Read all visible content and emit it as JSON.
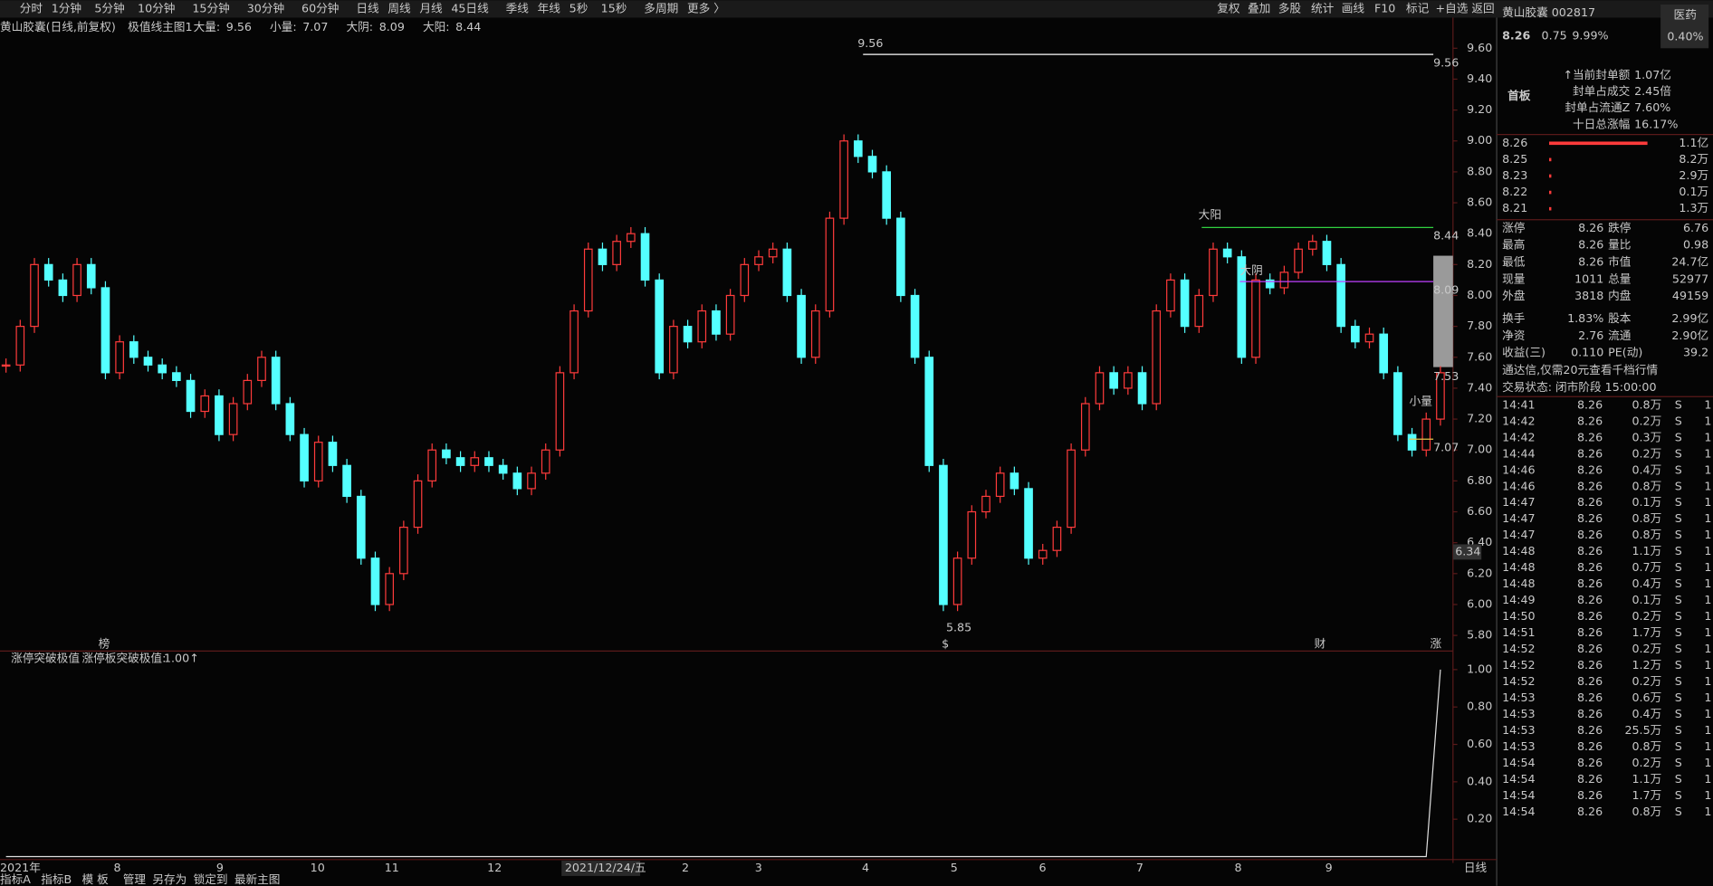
{
  "toolbar": {
    "left": [
      "分时",
      "1分钟",
      "5分钟",
      "10分钟",
      "15分钟",
      "30分钟",
      "60分钟",
      "日线",
      "周线",
      "月线",
      "45日线",
      "季线",
      "年线",
      "5秒",
      "15秒",
      "多周期",
      "更多 〉"
    ],
    "right": [
      "复权",
      "叠加",
      "多股",
      "统计",
      "画线",
      "F10",
      "标记",
      "+自选",
      "返回"
    ]
  },
  "header": {
    "title": "黄山胶囊(日线,前复权)",
    "indicator": "极值线主图1",
    "items": [
      {
        "label": "大量:",
        "value": "9.56",
        "color": "#ffffff"
      },
      {
        "label": "小量:",
        "value": "7.07",
        "color": "#e6c34a"
      },
      {
        "label": "大阴:",
        "value": "8.09",
        "color": "#c040ff"
      },
      {
        "label": "大阳:",
        "value": "8.44",
        "color": "#30d040"
      }
    ]
  },
  "chart": {
    "closes": [
      7.55,
      7.8,
      8.2,
      8.1,
      8.0,
      8.2,
      8.05,
      7.5,
      7.7,
      7.6,
      7.55,
      7.5,
      7.45,
      7.25,
      7.35,
      7.1,
      7.3,
      7.45,
      7.6,
      7.3,
      7.1,
      6.8,
      7.05,
      6.9,
      6.7,
      6.3,
      6.0,
      6.2,
      6.5,
      6.8,
      7.0,
      6.95,
      6.9,
      6.95,
      6.9,
      6.85,
      6.75,
      6.85,
      7.0,
      7.5,
      7.9,
      8.3,
      8.2,
      8.35,
      8.4,
      8.1,
      7.5,
      7.8,
      7.7,
      7.9,
      7.75,
      8.0,
      8.2,
      8.25,
      8.3,
      8.0,
      7.6,
      7.9,
      8.5,
      9.0,
      8.9,
      8.8,
      8.5,
      8.0,
      7.6,
      6.9,
      6.0,
      6.3,
      6.6,
      6.7,
      6.85,
      6.75,
      6.3,
      6.35,
      6.5,
      7.0,
      7.3,
      7.5,
      7.4,
      7.5,
      7.3,
      7.9,
      8.1,
      7.8,
      8.0,
      8.3,
      8.25,
      7.6,
      8.1,
      8.05,
      8.15,
      8.3,
      8.35,
      8.2,
      7.8,
      7.7,
      7.75,
      7.5,
      7.1,
      7.0,
      7.2,
      7.5
    ],
    "yticks": [
      {
        "value": 9.6,
        "label": "9.60"
      },
      {
        "value": 9.4,
        "label": "9.40"
      },
      {
        "value": 9.2,
        "label": "9.20"
      },
      {
        "value": 9.0,
        "label": "9.00"
      },
      {
        "value": 8.8,
        "label": "8.80"
      },
      {
        "value": 8.6,
        "label": "8.60"
      },
      {
        "value": 8.4,
        "label": "8.40"
      },
      {
        "value": 8.2,
        "label": "8.20"
      },
      {
        "value": 8.0,
        "label": "8.00"
      },
      {
        "value": 7.8,
        "label": "7.80"
      },
      {
        "value": 7.6,
        "label": "7.60"
      },
      {
        "value": 7.4,
        "label": "7.40"
      },
      {
        "value": 7.2,
        "label": "7.20"
      },
      {
        "value": 7.0,
        "label": "7.00"
      },
      {
        "value": 6.8,
        "label": "6.80"
      },
      {
        "value": 6.6,
        "label": "6.60"
      },
      {
        "value": 6.4,
        "label": "6.40"
      },
      {
        "value": 6.2,
        "label": "6.20"
      },
      {
        "value": 6.0,
        "label": "6.00"
      },
      {
        "value": 5.8,
        "label": "5.80"
      }
    ],
    "lines": [
      {
        "value": 9.56,
        "label": "9.56",
        "color": "#ffffff"
      },
      {
        "value": 8.44,
        "label": "8.44",
        "color": "#30d040"
      },
      {
        "value": 8.09,
        "label": "8.09",
        "color": "#c040ff"
      },
      {
        "value": 7.07,
        "label": "7.07",
        "color": "#e6c34a"
      }
    ],
    "axis_marks": [
      {
        "value": 7.53,
        "label": "7.53"
      },
      {
        "value": 6.34,
        "label": "6.34"
      }
    ],
    "annotations": [
      "9.56",
      "大阳",
      "大阴",
      "小量",
      "5.85"
    ],
    "markers": [
      "榜",
      "$",
      "财",
      "涨"
    ],
    "xlabels": [
      "2021年",
      "8",
      "9",
      "10",
      "11",
      "12",
      "2021/12/24/五",
      "2",
      "3",
      "4",
      "5",
      "6",
      "7",
      "8",
      "9"
    ],
    "period": "日线"
  },
  "indicator": {
    "name": "涨停突破极值",
    "label": "涨停板突破极值:",
    "value_text": "1.00↑",
    "values": [
      0,
      0,
      0,
      0,
      0,
      0,
      0,
      0,
      0,
      0,
      0,
      0,
      0,
      0,
      0,
      0,
      0,
      0,
      0,
      0,
      0,
      0,
      0,
      0,
      0,
      0,
      0,
      0,
      0,
      0,
      0,
      0,
      0,
      0,
      0,
      0,
      0,
      0,
      0,
      0,
      0,
      0,
      0,
      0,
      0,
      0,
      0,
      0,
      0,
      0,
      0,
      0,
      0,
      0,
      0,
      0,
      0,
      0,
      0,
      0,
      0,
      0,
      0,
      0,
      0,
      0,
      0,
      0,
      0,
      0,
      0,
      0,
      0,
      0,
      0,
      0,
      0,
      0,
      0,
      0,
      0,
      0,
      0,
      0,
      0,
      0,
      0,
      0,
      0,
      0,
      0,
      0,
      0,
      0,
      0,
      0,
      0,
      0,
      0,
      0,
      0,
      1
    ],
    "yticks": [
      {
        "value": 1,
        "label": "1.00"
      },
      {
        "value": 0.8,
        "label": "0.80"
      },
      {
        "value": 0.6,
        "label": "0.60"
      },
      {
        "value": 0.4,
        "label": "0.40"
      },
      {
        "value": 0.2,
        "label": "0.20"
      }
    ]
  },
  "tabs": [
    "指标A",
    "指标B",
    "模 板",
    "管理",
    "另存为",
    "锁定到",
    "最新主图"
  ],
  "right": {
    "name": "黄山胶囊 002817",
    "sector": "医药",
    "price": "8.26",
    "change": "0.75",
    "pct": "9.99%",
    "sector_pct": "0.40%",
    "tag": "首板",
    "seal": [
      [
        "↑当前封单额",
        "1.07亿"
      ],
      [
        "封单占成交",
        "2.45倍"
      ],
      [
        "封单占流通Z",
        "7.60%"
      ],
      [
        "十日总涨幅",
        "16.17%"
      ]
    ],
    "book": [
      [
        "8.26",
        "1.1亿"
      ],
      [
        "8.25",
        "8.2万"
      ],
      [
        "8.23",
        "2.9万"
      ],
      [
        "8.22",
        "0.1万"
      ],
      [
        "8.21",
        "1.3万"
      ]
    ],
    "stats": [
      [
        "涨停",
        "8.26",
        "跌停",
        "6.76"
      ],
      [
        "最高",
        "8.26",
        "量比",
        "0.98"
      ],
      [
        "最低",
        "8.26",
        "市值",
        "24.7亿"
      ],
      [
        "现量",
        "1011",
        "总量",
        "52977"
      ],
      [
        "外盘",
        "3818",
        "内盘",
        "49159"
      ],
      [
        "换手",
        "1.83%",
        "股本",
        "2.99亿"
      ],
      [
        "净资",
        "2.76",
        "流通",
        "2.90亿"
      ],
      [
        "收益(三)",
        "0.110",
        "PE(动)",
        "39.2"
      ]
    ],
    "notice": "通达信,仅需20元查看千档行情",
    "status": "交易状态: 闭市阶段 15:00:00",
    "ticks": [
      [
        "14:41",
        "8.26",
        "0.8万",
        "S",
        "1"
      ],
      [
        "14:42",
        "8.26",
        "0.2万",
        "S",
        "1"
      ],
      [
        "14:42",
        "8.26",
        "0.3万",
        "S",
        "1"
      ],
      [
        "14:44",
        "8.26",
        "0.2万",
        "S",
        "1"
      ],
      [
        "14:46",
        "8.26",
        "0.4万",
        "S",
        "1"
      ],
      [
        "14:46",
        "8.26",
        "0.8万",
        "S",
        "1"
      ],
      [
        "14:47",
        "8.26",
        "0.1万",
        "S",
        "1"
      ],
      [
        "14:47",
        "8.26",
        "0.8万",
        "S",
        "1"
      ],
      [
        "14:47",
        "8.26",
        "0.8万",
        "S",
        "1"
      ],
      [
        "14:48",
        "8.26",
        "1.1万",
        "S",
        "1"
      ],
      [
        "14:48",
        "8.26",
        "0.7万",
        "S",
        "1"
      ],
      [
        "14:48",
        "8.26",
        "0.4万",
        "S",
        "1"
      ],
      [
        "14:49",
        "8.26",
        "0.1万",
        "S",
        "1"
      ],
      [
        "14:50",
        "8.26",
        "0.2万",
        "S",
        "1"
      ],
      [
        "14:51",
        "8.26",
        "1.7万",
        "S",
        "1"
      ],
      [
        "14:52",
        "8.26",
        "0.2万",
        "S",
        "1"
      ],
      [
        "14:52",
        "8.26",
        "1.2万",
        "S",
        "1"
      ],
      [
        "14:52",
        "8.26",
        "0.2万",
        "S",
        "1"
      ],
      [
        "14:53",
        "8.26",
        "0.6万",
        "S",
        "1"
      ],
      [
        "14:53",
        "8.26",
        "0.4万",
        "S",
        "1"
      ],
      [
        "14:53",
        "8.26",
        "25.5万",
        "S",
        "1"
      ],
      [
        "14:53",
        "8.26",
        "0.8万",
        "S",
        "1"
      ],
      [
        "14:54",
        "8.26",
        "0.2万",
        "S",
        "1"
      ],
      [
        "14:54",
        "8.26",
        "1.1万",
        "S",
        "1"
      ],
      [
        "14:54",
        "8.26",
        "1.7万",
        "S",
        "1"
      ],
      [
        "14:54",
        "8.26",
        "0.8万",
        "S",
        "1"
      ]
    ]
  }
}
